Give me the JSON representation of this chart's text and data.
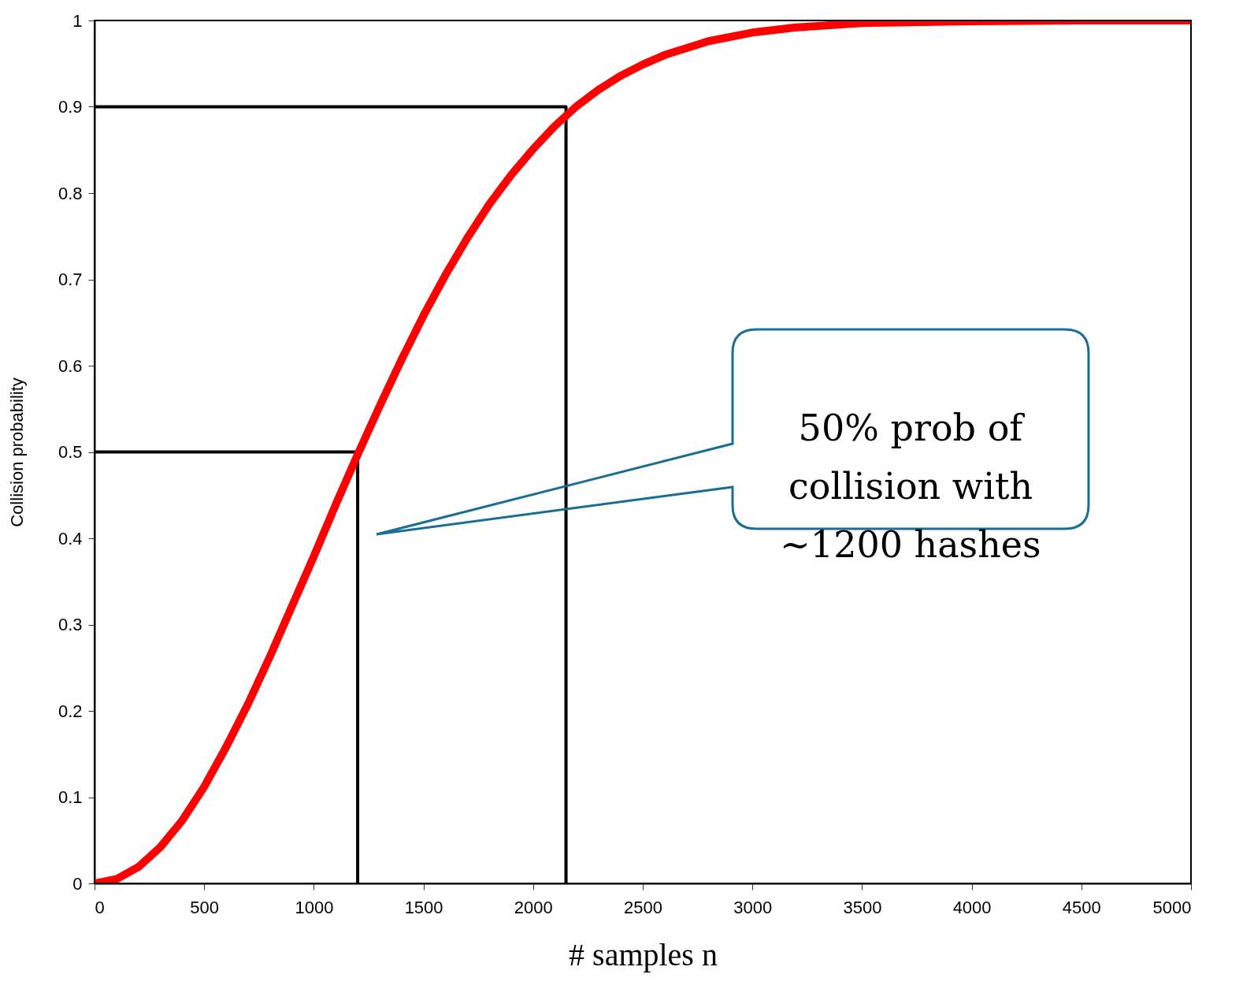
{
  "chart_data": {
    "type": "line",
    "xlabel": "# samples  n",
    "ylabel": "Collision probability",
    "xlim": [
      0,
      5000
    ],
    "xticks": [
      0,
      500,
      1000,
      1500,
      2000,
      2500,
      3000,
      3500,
      4000,
      4500,
      5000
    ],
    "ylim": [
      0,
      1
    ],
    "yticks": [
      0,
      0.1,
      0.2,
      0.3,
      0.4,
      0.5,
      0.6,
      0.7,
      0.8,
      0.9,
      1
    ],
    "grid": false,
    "series": [
      {
        "color": "#ff0000",
        "x": [
          0,
          100,
          200,
          300,
          400,
          500,
          600,
          700,
          800,
          900,
          1000,
          1100,
          1200,
          1300,
          1400,
          1500,
          1600,
          1700,
          1800,
          1900,
          2000,
          2100,
          2200,
          2300,
          2400,
          2500,
          2600,
          2800,
          3000,
          3200,
          3500,
          4000,
          4500,
          5000
        ],
        "values": [
          0,
          0.005,
          0.019,
          0.042,
          0.073,
          0.112,
          0.158,
          0.208,
          0.263,
          0.321,
          0.379,
          0.439,
          0.497,
          0.553,
          0.607,
          0.658,
          0.705,
          0.748,
          0.787,
          0.821,
          0.851,
          0.878,
          0.901,
          0.92,
          0.936,
          0.949,
          0.96,
          0.976,
          0.986,
          0.992,
          0.997,
          0.999,
          1,
          1
        ]
      },
      {
        "type": "line",
        "color": "#000000",
        "x": [
          0,
          1200,
          1200
        ],
        "values": [
          0.5,
          0.5,
          0
        ]
      },
      {
        "type": "line",
        "color": "#000000",
        "x": [
          0,
          2150,
          2150
        ],
        "values": [
          0.9,
          0.9,
          0
        ]
      }
    ],
    "annotations": [
      "50% prob of\ncollision with\n~1200 hashes"
    ]
  }
}
